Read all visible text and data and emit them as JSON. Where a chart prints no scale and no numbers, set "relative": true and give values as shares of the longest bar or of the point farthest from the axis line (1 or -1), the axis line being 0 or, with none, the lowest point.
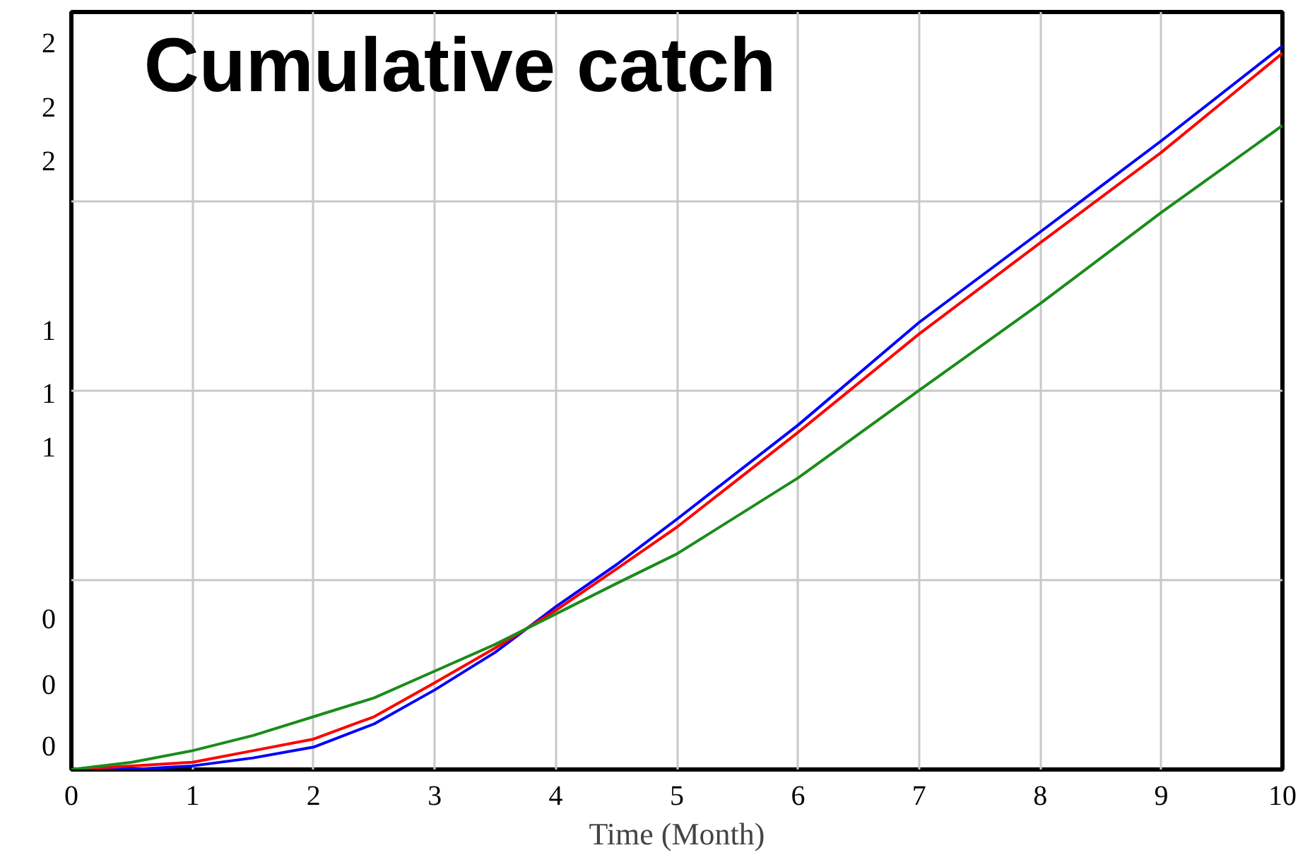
{
  "chart_data": {
    "type": "line",
    "title": "Cumulative catch",
    "xlabel": "Time (Month)",
    "relative": true,
    "annotations": [
      "2",
      "2",
      "2",
      "1",
      "1",
      "1",
      "0",
      "0",
      "0"
    ],
    "x": [
      0,
      0.5,
      1,
      1.5,
      2,
      2.5,
      3,
      3.5,
      4,
      4.5,
      5,
      6,
      7,
      8,
      9,
      10
    ],
    "series": [
      {
        "color": "#0000ff",
        "values": [
          0,
          0,
          0.005,
          0.016,
          0.031,
          0.063,
          0.11,
          0.162,
          0.225,
          0.283,
          0.346,
          0.476,
          0.618,
          0.743,
          0.869,
          1
        ]
      },
      {
        "color": "#ff0000",
        "values": [
          0,
          0.005,
          0.01,
          0.026,
          0.042,
          0.073,
          0.12,
          0.168,
          0.22,
          0.277,
          0.335,
          0.466,
          0.602,
          0.728,
          0.853,
          0.99
        ]
      },
      {
        "color": "#1a8c1a",
        "values": [
          0,
          0.01,
          0.026,
          0.047,
          0.073,
          0.099,
          0.136,
          0.173,
          0.215,
          0.257,
          0.298,
          0.403,
          0.524,
          0.644,
          0.77,
          0.89
        ]
      }
    ],
    "xlim": [
      0,
      10
    ],
    "xticks": [
      0,
      1,
      2,
      3,
      4,
      5,
      6,
      7,
      8,
      9,
      10
    ],
    "grid": true,
    "marker": "none",
    "line_style": "solid"
  }
}
